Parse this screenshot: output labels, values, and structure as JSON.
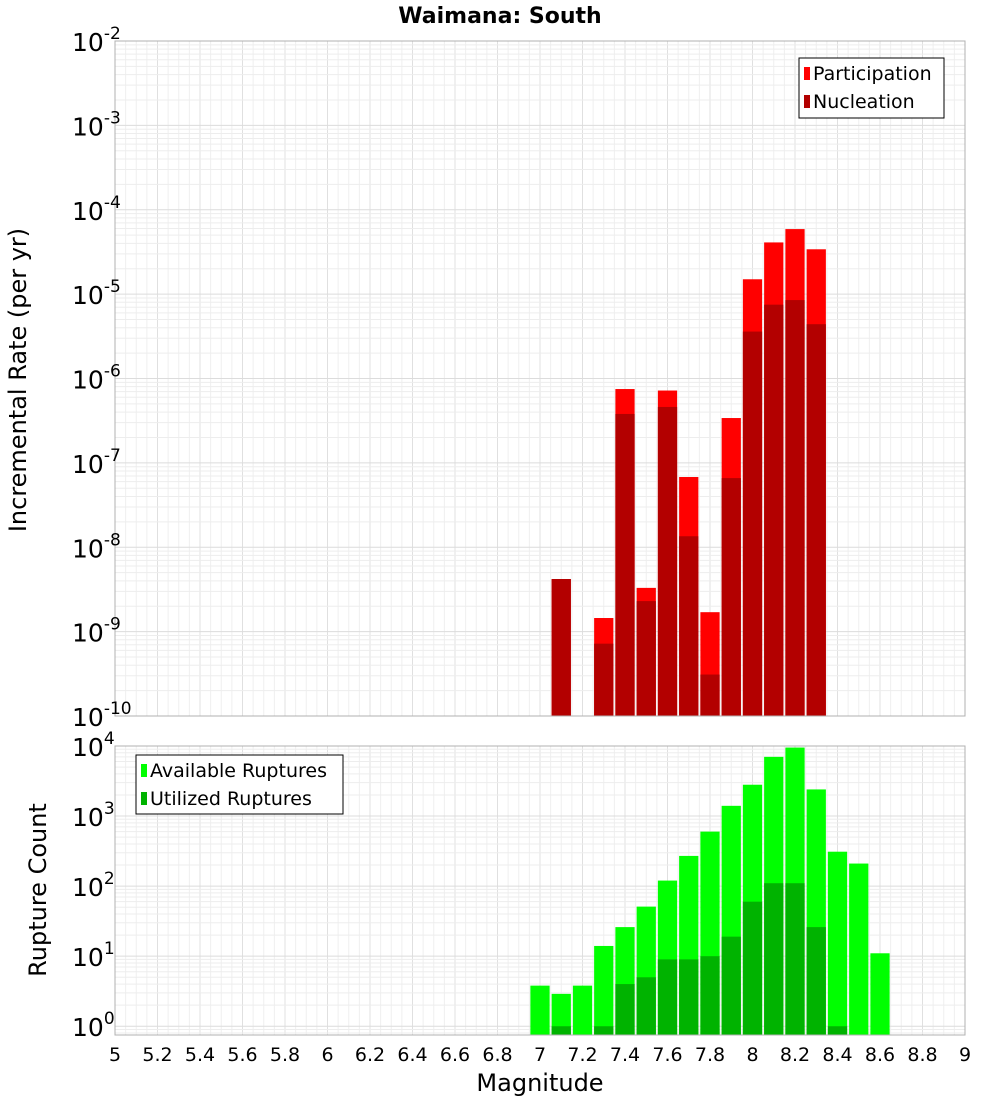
{
  "chart_data": [
    {
      "type": "bar",
      "title": "Waimana: South",
      "xlabel": "",
      "ylabel": "Incremental Rate (per yr)",
      "yscale": "log",
      "ylim": [
        1e-10,
        0.01
      ],
      "xlim": [
        5,
        9
      ],
      "grid": true,
      "legend_placement": "top-right",
      "y_tick_exponents": [
        "-2",
        "-3",
        "-4",
        "-5",
        "-6",
        "-7",
        "-8",
        "-9",
        "-10"
      ],
      "bin_width": 0.1,
      "overlap": true,
      "x": [
        7.1,
        7.3,
        7.4,
        7.5,
        7.6,
        7.7,
        7.8,
        7.9,
        8.0,
        8.1,
        8.2,
        8.3
      ],
      "series": [
        {
          "name": "Participation",
          "color": "#ff0000",
          "values": [
            4.2e-09,
            1.45e-09,
            7.5e-07,
            3.3e-09,
            7.2e-07,
            6.8e-08,
            1.7e-09,
            3.4e-07,
            1.5e-05,
            4.1e-05,
            5.9e-05,
            3.4e-05
          ]
        },
        {
          "name": "Nucleation",
          "color": "#b30000",
          "values": [
            4.2e-09,
            7.2e-10,
            3.8e-07,
            2.3e-09,
            4.6e-07,
            1.35e-08,
            3.1e-10,
            6.6e-08,
            3.6e-06,
            7.5e-06,
            8.5e-06,
            4.4e-06
          ]
        }
      ]
    },
    {
      "type": "bar",
      "title": "",
      "xlabel": "Magnitude",
      "ylabel": "Rupture Count",
      "yscale": "log",
      "ylim": [
        0.75,
        10000
      ],
      "xlim": [
        5,
        9
      ],
      "grid": true,
      "legend_placement": "top-left",
      "y_tick_exponents": [
        "4",
        "3",
        "2",
        "1",
        "0"
      ],
      "x_tick_labels": [
        "5",
        "5.2",
        "5.4",
        "5.6",
        "5.8",
        "6",
        "6.2",
        "6.4",
        "6.6",
        "6.8",
        "7",
        "7.2",
        "7.4",
        "7.6",
        "7.8",
        "8",
        "8.2",
        "8.4",
        "8.6",
        "8.8",
        "9"
      ],
      "bin_width": 0.1,
      "overlap": true,
      "x": [
        7.0,
        7.1,
        7.2,
        7.3,
        7.4,
        7.5,
        7.6,
        7.7,
        7.8,
        7.9,
        8.0,
        8.1,
        8.2,
        8.3,
        8.4,
        8.5,
        8.6
      ],
      "series": [
        {
          "name": "Available Ruptures",
          "color": "#00ff00",
          "values": [
            3.8,
            2.9,
            3.8,
            14,
            26,
            51,
            120,
            270,
            600,
            1400,
            2800,
            7000,
            9500,
            2400,
            310,
            210,
            11
          ]
        },
        {
          "name": "Utilized Ruptures",
          "color": "#00b300",
          "values": [
            0,
            1,
            0,
            1,
            4,
            5,
            9,
            9,
            10,
            19,
            60,
            110,
            110,
            26,
            1,
            0,
            0
          ]
        }
      ]
    }
  ]
}
